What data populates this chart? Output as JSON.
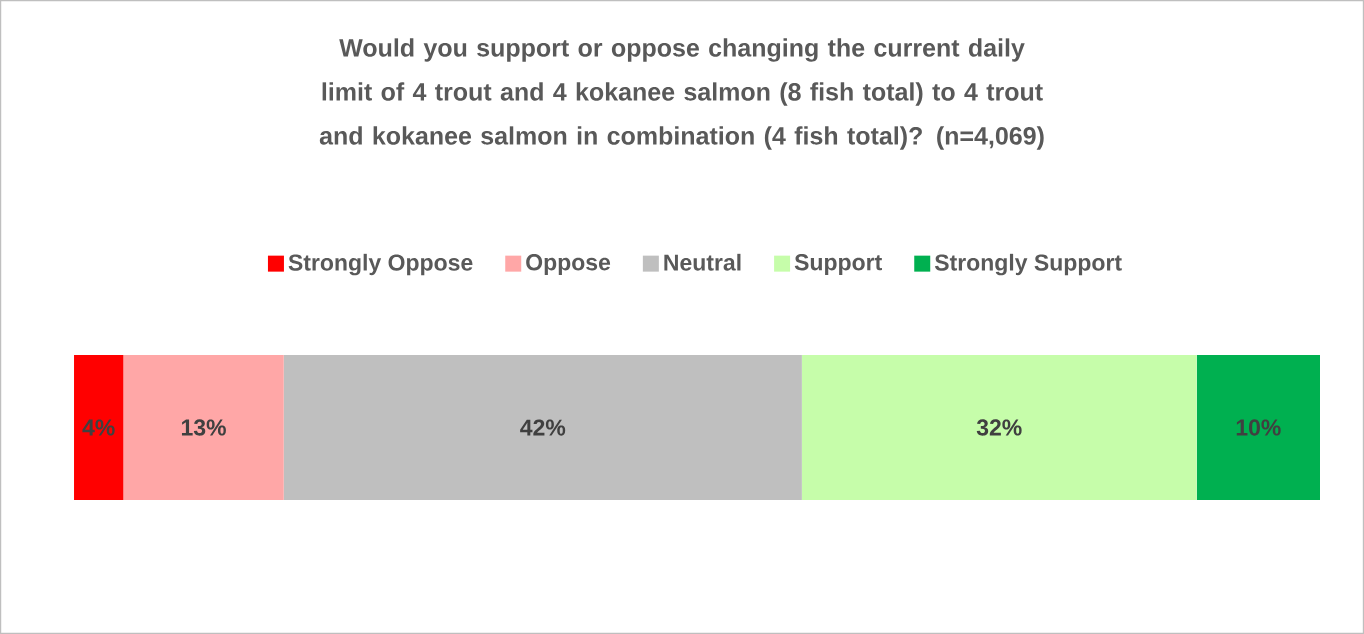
{
  "chart_data": {
    "type": "bar",
    "orientation": "horizontal",
    "stacked": true,
    "title": "Would you support or oppose changing the current daily limit of 4 trout and 4 kokanee salmon (8 fish total) to 4 trout and kokanee salmon in combination (4 fish total)? (n=4,069)",
    "categories": [
      null
    ],
    "legend": "top",
    "series": [
      {
        "name": "Strongly Oppose",
        "color": "#ff0000",
        "values": [
          4
        ],
        "value_labels": [
          "4%"
        ]
      },
      {
        "name": "Oppose",
        "color": "#ffa7a7",
        "values": [
          13
        ],
        "value_labels": [
          "13%"
        ]
      },
      {
        "name": "Neutral",
        "color": "#bfbfbf",
        "values": [
          42
        ],
        "value_labels": [
          "42%"
        ]
      },
      {
        "name": "Support",
        "color": "#c6fdaa",
        "values": [
          32
        ],
        "value_labels": [
          "32%"
        ]
      },
      {
        "name": "Strongly Support",
        "color": "#00b050",
        "values": [
          10
        ],
        "value_labels": [
          "10%"
        ]
      }
    ]
  }
}
